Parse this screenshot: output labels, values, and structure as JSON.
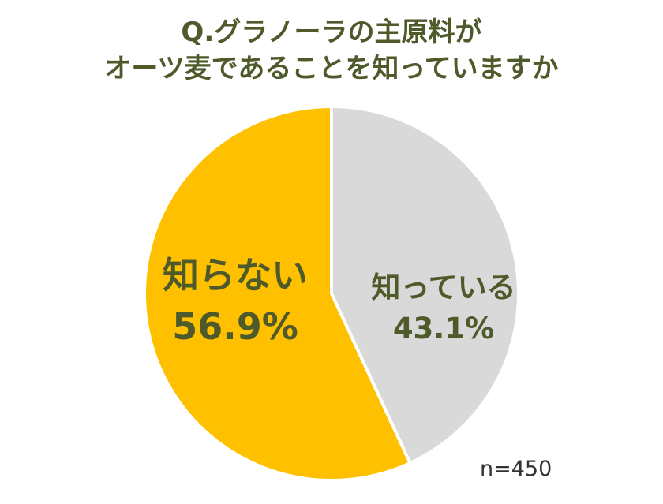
{
  "chart_data": {
    "type": "pie",
    "title_lines": [
      "Q.グラノーラの主原料が",
      "オーツ麦であることを知っていますか"
    ],
    "slices": [
      {
        "label": "知っている",
        "value": 43.1,
        "value_label": "43.1%",
        "color": "#d9d9d9"
      },
      {
        "label": "知らない",
        "value": 56.9,
        "value_label": "56.9%",
        "color": "#ffc000"
      }
    ],
    "start": "12 o'clock",
    "direction": "clockwise",
    "slice_border_color": "#ffffff",
    "sample_size_label": "n=450"
  }
}
